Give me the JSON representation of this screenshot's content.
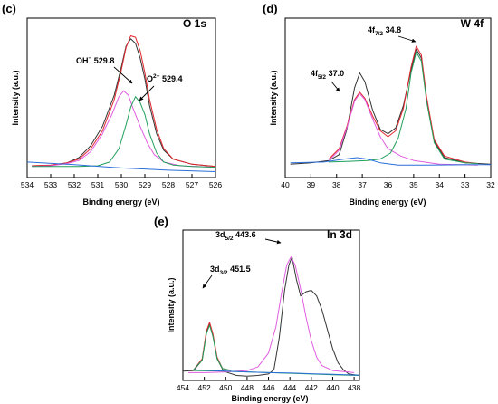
{
  "chart_data": [
    {
      "type": "line",
      "panel_label": "(c)",
      "title": "O 1s",
      "xlabel": "Binding energy (eV)",
      "ylabel": "Intensity (a.u.)",
      "xlim": [
        534,
        526
      ],
      "ylim": [
        0,
        1
      ],
      "x_reversed": true,
      "xticks": [
        534,
        533,
        532,
        531,
        530,
        529,
        528,
        527,
        526
      ],
      "grid": false,
      "series": [
        {
          "color": "#333333",
          "points": [
            [
              533.8,
              0.055
            ],
            [
              533.0,
              0.058
            ],
            [
              532.3,
              0.075
            ],
            [
              531.8,
              0.11
            ],
            [
              531.3,
              0.19
            ],
            [
              530.8,
              0.32
            ],
            [
              530.3,
              0.53
            ],
            [
              530.0,
              0.72
            ],
            [
              529.8,
              0.86
            ],
            [
              529.6,
              0.91
            ],
            [
              529.4,
              0.88
            ],
            [
              529.2,
              0.78
            ],
            [
              529.0,
              0.64
            ],
            [
              528.8,
              0.46
            ],
            [
              528.5,
              0.27
            ],
            [
              528.2,
              0.16
            ],
            [
              527.8,
              0.1
            ],
            [
              527.0,
              0.065
            ],
            [
              526.0,
              0.05
            ]
          ]
        },
        {
          "color": "#e3262f",
          "points": [
            [
              533.8,
              0.055
            ],
            [
              533.0,
              0.06
            ],
            [
              532.3,
              0.075
            ],
            [
              531.8,
              0.1
            ],
            [
              531.3,
              0.17
            ],
            [
              530.8,
              0.29
            ],
            [
              530.3,
              0.5
            ],
            [
              530.0,
              0.7
            ],
            [
              529.8,
              0.85
            ],
            [
              529.6,
              0.93
            ],
            [
              529.4,
              0.92
            ],
            [
              529.2,
              0.83
            ],
            [
              529.0,
              0.68
            ],
            [
              528.8,
              0.5
            ],
            [
              528.5,
              0.3
            ],
            [
              528.2,
              0.17
            ],
            [
              527.8,
              0.1
            ],
            [
              527.0,
              0.065
            ],
            [
              526.0,
              0.05
            ]
          ]
        },
        {
          "color": "#e15ce0",
          "points": [
            [
              533.8,
              0.05
            ],
            [
              533.0,
              0.055
            ],
            [
              532.3,
              0.07
            ],
            [
              531.8,
              0.09
            ],
            [
              531.3,
              0.15
            ],
            [
              530.8,
              0.27
            ],
            [
              530.4,
              0.4
            ],
            [
              530.1,
              0.52
            ],
            [
              529.9,
              0.56
            ],
            [
              529.7,
              0.53
            ],
            [
              529.5,
              0.44
            ],
            [
              529.2,
              0.32
            ],
            [
              528.9,
              0.21
            ],
            [
              528.6,
              0.13
            ],
            [
              528.2,
              0.08
            ],
            [
              527.5,
              0.055
            ],
            [
              526.0,
              0.045
            ]
          ]
        },
        {
          "color": "#1f9f5a",
          "points": [
            [
              533.8,
              0.05
            ],
            [
              533.0,
              0.05
            ],
            [
              531.8,
              0.05
            ],
            [
              531.0,
              0.055
            ],
            [
              530.5,
              0.08
            ],
            [
              530.1,
              0.17
            ],
            [
              529.8,
              0.33
            ],
            [
              529.6,
              0.45
            ],
            [
              529.4,
              0.52
            ],
            [
              529.2,
              0.48
            ],
            [
              529.0,
              0.4
            ],
            [
              528.8,
              0.27
            ],
            [
              528.5,
              0.14
            ],
            [
              528.2,
              0.08
            ],
            [
              527.8,
              0.06
            ],
            [
              527.0,
              0.05
            ],
            [
              526.0,
              0.045
            ]
          ]
        },
        {
          "color": "#2a6fdb",
          "points": [
            [
              534.0,
              0.08
            ],
            [
              532.0,
              0.062
            ],
            [
              530.0,
              0.04
            ],
            [
              528.0,
              0.025
            ],
            [
              526.0,
              0.015
            ]
          ]
        }
      ],
      "annotations": [
        {
          "text": "OH",
          "sup": "−",
          "rest": " 529.8",
          "x": 529.8
        },
        {
          "text": "O",
          "sup": "2−",
          "rest": " 529.4",
          "x": 529.4
        }
      ]
    },
    {
      "type": "line",
      "panel_label": "(d)",
      "title": "W 4f",
      "xlabel": "Binding energy (eV)",
      "ylabel": "Intensity (a.u.)",
      "xlim": [
        40,
        32
      ],
      "ylim": [
        0,
        1
      ],
      "x_reversed": true,
      "xticks": [
        40,
        39,
        38,
        37,
        36,
        35,
        34,
        33,
        32
      ],
      "grid": false,
      "series": [
        {
          "color": "#333333",
          "points": [
            [
              39.8,
              0.065
            ],
            [
              39.0,
              0.075
            ],
            [
              38.3,
              0.09
            ],
            [
              37.9,
              0.13
            ],
            [
              37.6,
              0.3
            ],
            [
              37.3,
              0.58
            ],
            [
              37.1,
              0.68
            ],
            [
              36.9,
              0.62
            ],
            [
              36.6,
              0.43
            ],
            [
              36.3,
              0.3
            ],
            [
              36.0,
              0.27
            ],
            [
              35.7,
              0.31
            ],
            [
              35.4,
              0.46
            ],
            [
              35.1,
              0.7
            ],
            [
              34.9,
              0.84
            ],
            [
              34.7,
              0.78
            ],
            [
              34.5,
              0.5
            ],
            [
              34.2,
              0.22
            ],
            [
              33.8,
              0.11
            ],
            [
              33.0,
              0.075
            ],
            [
              32.0,
              0.065
            ]
          ]
        },
        {
          "color": "#e3262f",
          "points": [
            [
              38.3,
              0.1
            ],
            [
              37.9,
              0.17
            ],
            [
              37.6,
              0.32
            ],
            [
              37.3,
              0.5
            ],
            [
              37.1,
              0.55
            ],
            [
              36.9,
              0.51
            ],
            [
              36.6,
              0.39
            ],
            [
              36.3,
              0.29
            ],
            [
              36.0,
              0.25
            ],
            [
              35.7,
              0.29
            ],
            [
              35.4,
              0.44
            ],
            [
              35.1,
              0.72
            ],
            [
              34.9,
              0.86
            ],
            [
              34.7,
              0.8
            ],
            [
              34.5,
              0.52
            ],
            [
              34.2,
              0.23
            ],
            [
              33.8,
              0.12
            ],
            [
              33.0,
              0.08
            ],
            [
              32.5,
              0.07
            ]
          ]
        },
        {
          "color": "#e15ce0",
          "points": [
            [
              38.3,
              0.09
            ],
            [
              37.9,
              0.16
            ],
            [
              37.6,
              0.31
            ],
            [
              37.3,
              0.49
            ],
            [
              37.1,
              0.54
            ],
            [
              36.9,
              0.5
            ],
            [
              36.6,
              0.37
            ],
            [
              36.3,
              0.25
            ],
            [
              36.0,
              0.17
            ],
            [
              35.5,
              0.12
            ],
            [
              35.0,
              0.09
            ],
            [
              34.0,
              0.065
            ],
            [
              32.5,
              0.06
            ]
          ]
        },
        {
          "color": "#1f9f5a",
          "points": [
            [
              38.3,
              0.08
            ],
            [
              37.5,
              0.085
            ],
            [
              36.8,
              0.09
            ],
            [
              36.3,
              0.1
            ],
            [
              35.9,
              0.14
            ],
            [
              35.6,
              0.24
            ],
            [
              35.3,
              0.44
            ],
            [
              35.1,
              0.68
            ],
            [
              34.9,
              0.82
            ],
            [
              34.7,
              0.76
            ],
            [
              34.5,
              0.49
            ],
            [
              34.2,
              0.21
            ],
            [
              33.8,
              0.1
            ],
            [
              33.0,
              0.075
            ],
            [
              32.5,
              0.07
            ]
          ]
        },
        {
          "color": "#2a6fdb",
          "points": [
            [
              39.8,
              0.075
            ],
            [
              38.5,
              0.08
            ],
            [
              37.7,
              0.1
            ],
            [
              37.2,
              0.11
            ],
            [
              36.8,
              0.1
            ],
            [
              36.3,
              0.075
            ],
            [
              35.6,
              0.06
            ],
            [
              34.5,
              0.06
            ],
            [
              33.0,
              0.062
            ],
            [
              32.0,
              0.062
            ]
          ]
        }
      ],
      "annotations": [
        {
          "text": "4f",
          "sub": "5/2",
          "rest": " 37.0",
          "x": 37.0
        },
        {
          "text": "4f",
          "sub": "7/2",
          "rest": " 34.8",
          "x": 34.8
        }
      ]
    },
    {
      "type": "line",
      "panel_label": "(e)",
      "title": "In 3d",
      "xlabel": "Binding energy (eV)",
      "ylabel": "Intensity (a.u.)",
      "xlim": [
        454,
        437.5
      ],
      "ylim": [
        0,
        1
      ],
      "x_reversed": true,
      "xticks": [
        454,
        452,
        450,
        448,
        446,
        444,
        442,
        440,
        438
      ],
      "grid": false,
      "series": [
        {
          "color": "#333333",
          "points": [
            [
              454.0,
              0.04
            ],
            [
              453.0,
              0.045
            ],
            [
              452.2,
              0.12
            ],
            [
              451.8,
              0.32
            ],
            [
              451.5,
              0.38
            ],
            [
              451.2,
              0.3
            ],
            [
              450.8,
              0.13
            ],
            [
              450.2,
              0.04
            ],
            [
              449.0,
              0.01
            ],
            [
              448.0,
              0.005
            ],
            [
              447.0,
              0.01
            ],
            [
              446.0,
              0.02
            ],
            [
              445.5,
              0.05
            ],
            [
              445.0,
              0.28
            ],
            [
              444.5,
              0.62
            ],
            [
              444.1,
              0.8
            ],
            [
              443.8,
              0.86
            ],
            [
              443.4,
              0.7
            ],
            [
              443.0,
              0.58
            ],
            [
              442.5,
              0.61
            ],
            [
              442.0,
              0.62
            ],
            [
              441.5,
              0.58
            ],
            [
              441.0,
              0.48
            ],
            [
              440.5,
              0.34
            ],
            [
              440.0,
              0.2
            ],
            [
              439.5,
              0.1
            ],
            [
              439.0,
              0.05
            ],
            [
              438.5,
              0.02
            ],
            [
              437.5,
              0.01
            ]
          ]
        },
        {
          "color": "#e3262f",
          "points": [
            [
              453.0,
              0.05
            ],
            [
              452.2,
              0.13
            ],
            [
              451.8,
              0.33
            ],
            [
              451.5,
              0.39
            ],
            [
              451.2,
              0.31
            ],
            [
              450.8,
              0.14
            ],
            [
              450.3,
              0.06
            ],
            [
              449.5,
              0.045
            ]
          ]
        },
        {
          "color": "#1f9f5a",
          "points": [
            [
              453.0,
              0.05
            ],
            [
              452.2,
              0.12
            ],
            [
              451.8,
              0.31
            ],
            [
              451.5,
              0.37
            ],
            [
              451.2,
              0.29
            ],
            [
              450.8,
              0.13
            ],
            [
              450.3,
              0.06
            ],
            [
              449.5,
              0.045
            ]
          ]
        },
        {
          "color": "#e15ce0",
          "points": [
            [
              453.5,
              0.03
            ],
            [
              452.0,
              0.03
            ],
            [
              450.0,
              0.035
            ],
            [
              448.0,
              0.045
            ],
            [
              447.0,
              0.07
            ],
            [
              446.0,
              0.17
            ],
            [
              445.3,
              0.36
            ],
            [
              444.8,
              0.59
            ],
            [
              444.3,
              0.8
            ],
            [
              443.9,
              0.86
            ],
            [
              443.5,
              0.8
            ],
            [
              443.0,
              0.63
            ],
            [
              442.5,
              0.43
            ],
            [
              442.0,
              0.26
            ],
            [
              441.5,
              0.14
            ],
            [
              441.0,
              0.08
            ],
            [
              440.0,
              0.045
            ],
            [
              438.0,
              0.03
            ]
          ]
        },
        {
          "color": "#1f9f5a",
          "points": [
            [
              453.0,
              0.045
            ],
            [
              450.0,
              0.04
            ],
            [
              448.0,
              0.035
            ],
            [
              446.0,
              0.03
            ],
            [
              444.0,
              0.025
            ],
            [
              442.0,
              0.02
            ],
            [
              440.0,
              0.015
            ],
            [
              437.5,
              0.01
            ]
          ]
        },
        {
          "color": "#2a6fdb",
          "points": [
            [
              453.0,
              0.05
            ],
            [
              450.0,
              0.04
            ],
            [
              448.0,
              0.035
            ],
            [
              446.0,
              0.03
            ],
            [
              444.0,
              0.028
            ],
            [
              442.0,
              0.022
            ],
            [
              440.0,
              0.018
            ],
            [
              437.5,
              0.012
            ]
          ]
        }
      ],
      "annotations": [
        {
          "text": "3d",
          "sub": "3/2",
          "rest": " 451.5",
          "x": 451.5
        },
        {
          "text": "3d",
          "sub": "5/2",
          "rest": " 443.6",
          "x": 443.6
        }
      ]
    }
  ]
}
